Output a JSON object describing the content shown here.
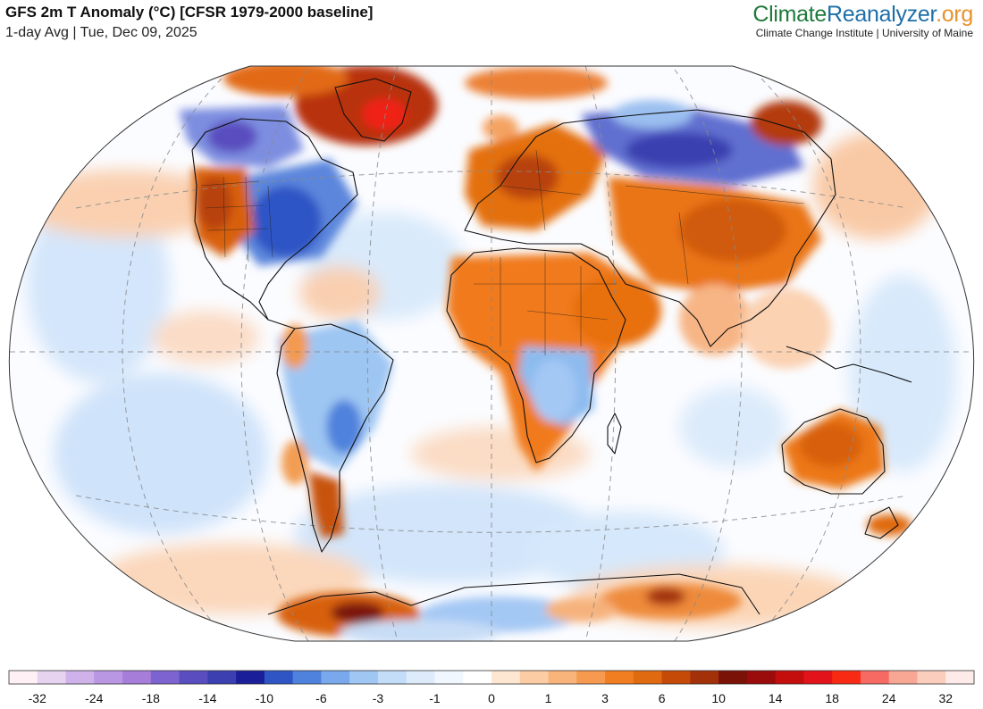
{
  "header": {
    "title": "GFS 2m T Anomaly (°C) [CFSR 1979-2000 baseline]",
    "subtitle": "1-day Avg | Tue, Dec 09, 2025"
  },
  "brand": {
    "part1": "Climate",
    "part2": "Reanalyzer",
    "part3": ".org",
    "tagline": "Climate Change Institute | University of Maine",
    "colors": {
      "part1": "#1f7a3d",
      "part2": "#1e6fa8",
      "part3": "#e8912a"
    }
  },
  "map": {
    "projection": "Winkel Tripel (global)",
    "graticule": "dashed",
    "colors": {
      "strong_warm": "#b0300c",
      "warm": "#e06a10",
      "mild_warm": "#f7b985",
      "neutral": "#ffffff",
      "mild_cool": "#cfe4fa",
      "cool": "#8fbcef",
      "strong_cool": "#3b3fb0",
      "extreme_warm": "#f02418",
      "coastline": "#111111"
    }
  },
  "legend": {
    "colors": [
      "#fff0f5",
      "#e5d3f0",
      "#cfb2ea",
      "#b997e3",
      "#a67ed9",
      "#7d63cf",
      "#5a4dbf",
      "#3b3fb0",
      "#1a1e98",
      "#2f55c5",
      "#4f82dc",
      "#79a9ec",
      "#a0c6f4",
      "#c3dcf8",
      "#ddebfb",
      "#f1f7fe",
      "#ffffff",
      "#fde7d3",
      "#fccda5",
      "#f9b47c",
      "#f69a50",
      "#f27e22",
      "#e06a10",
      "#c54a08",
      "#a2310a",
      "#7b1208",
      "#9a0b0b",
      "#c40d0d",
      "#e2131a",
      "#f82a14",
      "#f76a63",
      "#f8a795",
      "#fbcdbd",
      "#fdebe9"
    ],
    "labels": [
      "-32",
      "-24",
      "-18",
      "-14",
      "-10",
      "-6",
      "-3",
      "-1",
      "0",
      "1",
      "3",
      "6",
      "10",
      "14",
      "18",
      "24",
      "32"
    ]
  }
}
